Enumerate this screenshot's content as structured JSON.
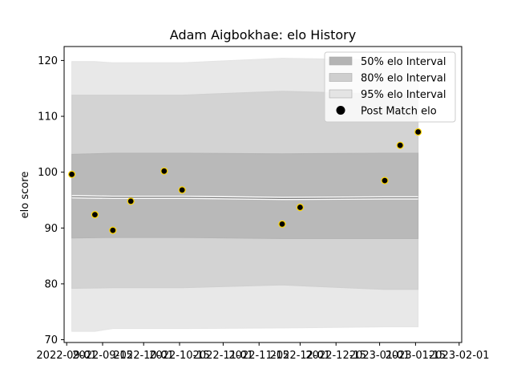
{
  "chart_data": {
    "type": "line",
    "title": "Adam Aigbokhae: elo History",
    "xlabel": "",
    "ylabel": "elo score",
    "x_axis": {
      "type": "date",
      "range": [
        "2022-08-31",
        "2023-02-02"
      ],
      "ticks": [
        "2022-09-01",
        "2022-09-15",
        "2022-10-01",
        "2022-10-15",
        "2022-11-01",
        "2022-11-15",
        "2022-12-01",
        "2022-12-15",
        "2023-01-01",
        "2023-01-15",
        "2023-02-01"
      ],
      "tick_labels": [
        "2022-09-01",
        "2022-09-15",
        "2022-10-01",
        "2022-10-15",
        "2022-11-01",
        "2022-11-15",
        "2022-12-01",
        "2022-12-15",
        "2023-01-01",
        "2023-01-15",
        "2023-02-01"
      ]
    },
    "y_axis": {
      "range": [
        69.5,
        122.5
      ],
      "ticks": [
        70,
        80,
        90,
        100,
        110,
        120
      ],
      "tick_labels": [
        "70",
        "80",
        "90",
        "100",
        "110",
        "120"
      ]
    },
    "legend": {
      "placement": "top-right",
      "entries": [
        "50% elo Interval",
        "80% elo Interval",
        "95% elo Interval",
        "Post Match elo"
      ]
    },
    "colors": {
      "band_50": "#b4b4b4",
      "band_80": "#cfcfcf",
      "band_95": "#e4e4e4",
      "mean_line": "#777777",
      "marker_fill": "#000000",
      "marker_edge": "#ffd700"
    },
    "series": [
      {
        "name": "Post Match elo",
        "kind": "scatter",
        "points": [
          {
            "x": "2022-09-03",
            "y": 99.6
          },
          {
            "x": "2022-09-12",
            "y": 92.4
          },
          {
            "x": "2022-09-19",
            "y": 89.6
          },
          {
            "x": "2022-09-26",
            "y": 94.8
          },
          {
            "x": "2022-10-09",
            "y": 100.2
          },
          {
            "x": "2022-10-16",
            "y": 96.8
          },
          {
            "x": "2022-11-24",
            "y": 90.7
          },
          {
            "x": "2022-12-01",
            "y": 93.7
          },
          {
            "x": "2023-01-03",
            "y": 98.5
          },
          {
            "x": "2023-01-09",
            "y": 104.8
          },
          {
            "x": "2023-01-16",
            "y": 107.2
          }
        ]
      },
      {
        "name": "mean",
        "kind": "line",
        "points": [
          {
            "x": "2022-09-03",
            "y": 95.6
          },
          {
            "x": "2022-09-19",
            "y": 95.5
          },
          {
            "x": "2022-10-16",
            "y": 95.5
          },
          {
            "x": "2022-11-24",
            "y": 95.3
          },
          {
            "x": "2023-01-03",
            "y": 95.4
          },
          {
            "x": "2023-01-16",
            "y": 95.4
          }
        ]
      },
      {
        "name": "50% elo Interval",
        "kind": "band",
        "points": [
          {
            "x": "2022-09-03",
            "lo": 88.2,
            "hi": 103.2
          },
          {
            "x": "2022-09-19",
            "lo": 88.3,
            "hi": 103.4
          },
          {
            "x": "2022-10-16",
            "lo": 88.3,
            "hi": 103.4
          },
          {
            "x": "2022-11-24",
            "lo": 88.1,
            "hi": 103.3
          },
          {
            "x": "2023-01-03",
            "lo": 88.1,
            "hi": 103.4
          },
          {
            "x": "2023-01-16",
            "lo": 88.1,
            "hi": 103.4
          }
        ]
      },
      {
        "name": "80% elo Interval",
        "kind": "band",
        "points": [
          {
            "x": "2022-09-03",
            "lo": 79.2,
            "hi": 113.8
          },
          {
            "x": "2022-09-19",
            "lo": 79.3,
            "hi": 113.8
          },
          {
            "x": "2022-10-16",
            "lo": 79.3,
            "hi": 113.8
          },
          {
            "x": "2022-11-24",
            "lo": 79.8,
            "hi": 114.5
          },
          {
            "x": "2023-01-03",
            "lo": 79.0,
            "hi": 114.0
          },
          {
            "x": "2023-01-16",
            "lo": 79.0,
            "hi": 114.0
          }
        ]
      },
      {
        "name": "95% elo Interval",
        "kind": "band",
        "points": [
          {
            "x": "2022-09-03",
            "lo": 71.5,
            "hi": 119.8
          },
          {
            "x": "2022-09-12",
            "lo": 71.5,
            "hi": 119.8
          },
          {
            "x": "2022-09-19",
            "lo": 72.0,
            "hi": 119.6
          },
          {
            "x": "2022-10-16",
            "lo": 72.0,
            "hi": 119.6
          },
          {
            "x": "2022-11-24",
            "lo": 72.1,
            "hi": 120.4
          },
          {
            "x": "2023-01-03",
            "lo": 72.3,
            "hi": 120.1
          },
          {
            "x": "2023-01-16",
            "lo": 72.3,
            "hi": 120.1
          }
        ]
      }
    ],
    "grid": false
  }
}
